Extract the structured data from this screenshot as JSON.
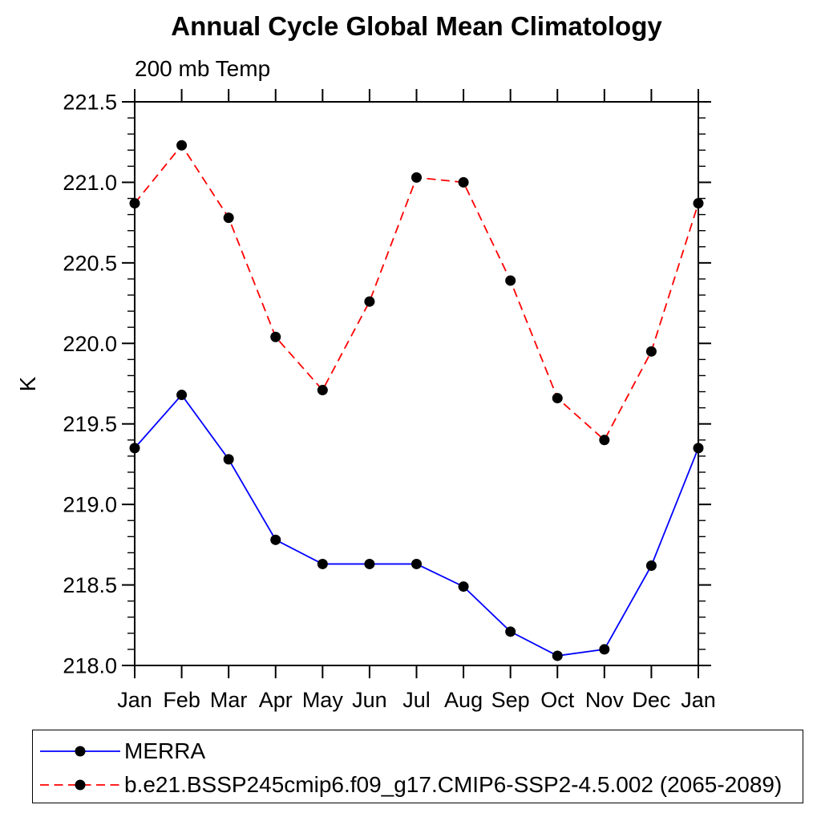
{
  "chart_data": {
    "type": "line",
    "title": "Annual Cycle Global Mean Climatology",
    "subtitle": "200 mb Temp",
    "ylabel": "K",
    "xlabel": "",
    "categories": [
      "Jan",
      "Feb",
      "Mar",
      "Apr",
      "May",
      "Jun",
      "Jul",
      "Aug",
      "Sep",
      "Oct",
      "Nov",
      "Dec",
      "Jan"
    ],
    "ylim": [
      218.0,
      221.5
    ],
    "ytick_step": 0.5,
    "yminor_step": 0.1,
    "grid": false,
    "legend_position": "bottom box",
    "marker_shape": "circle",
    "marker_color": "#000000",
    "series": [
      {
        "name": "MERRA",
        "color": "#0000ff",
        "line_style": "solid",
        "values": [
          219.35,
          219.68,
          219.28,
          218.78,
          218.63,
          218.63,
          218.63,
          218.49,
          218.21,
          218.06,
          218.1,
          218.62,
          219.35
        ]
      },
      {
        "name": "b.e21.BSSP245cmip6.f09_g17.CMIP6-SSP2-4.5.002 (2065-2089)",
        "color": "#ff0000",
        "line_style": "dashed",
        "values": [
          220.87,
          221.23,
          220.78,
          220.04,
          219.71,
          220.26,
          221.03,
          221.0,
          220.39,
          219.66,
          219.4,
          219.95,
          220.87
        ]
      }
    ]
  }
}
